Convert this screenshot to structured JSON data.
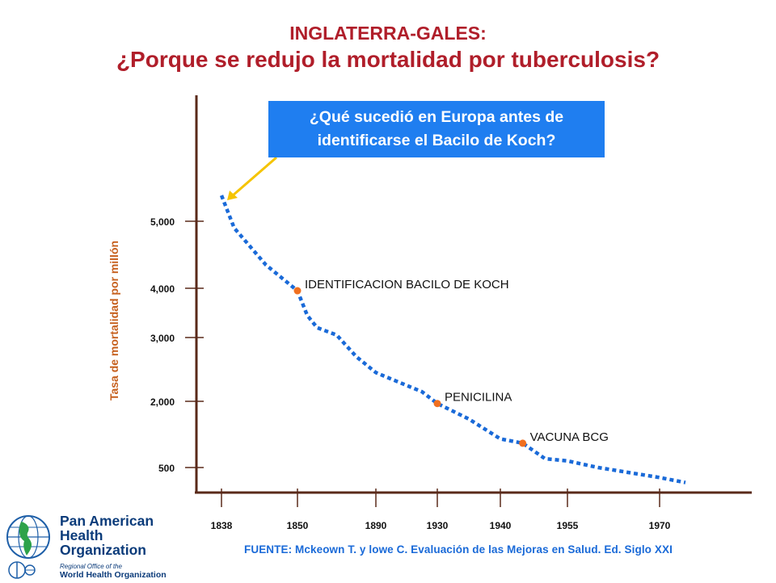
{
  "header": {
    "line1": "INGLATERRA-GALES:",
    "line2": "¿Porque se redujo la mortalidad por tuberculosis?"
  },
  "callout": {
    "line1": "¿Qué sucedió en Europa antes de",
    "line2": "identificarse el Bacilo de Koch?",
    "background": "#1f7ef0",
    "arrow_color": "#f5c400"
  },
  "source": "FUENTE: Mckeown T. y  lowe C. Evaluación de las Mejoras en Salud. Ed. Siglo XXI",
  "logo": {
    "org_line1": "Pan American",
    "org_line2": "Health",
    "org_line3": "Organization",
    "sub1": "Regional Office of the",
    "sub2": "World Health Organization",
    "icons": [
      "globe-americas-icon",
      "who-emblem-icon"
    ]
  },
  "chart_data": {
    "type": "line",
    "title": "",
    "xlabel": "",
    "ylabel": "Tasa de mortalidad por millón",
    "x_ticks": [
      "1838",
      "1850",
      "1890",
      "1930",
      "1940",
      "1955",
      "1970"
    ],
    "y_ticks": [
      "500",
      "2,000",
      "3,000",
      "4,000",
      "5,000"
    ],
    "grid": false,
    "line_color": "#1a6ad8",
    "line_style": "dotted",
    "marker_color": "#f07020",
    "series": [
      {
        "values": [
          {
            "x": 1838,
            "y": 5400
          },
          {
            "x": 1840,
            "y": 4900
          },
          {
            "x": 1845,
            "y": 4350
          },
          {
            "x": 1850,
            "y": 3950
          },
          {
            "x": 1855,
            "y": 3450
          },
          {
            "x": 1860,
            "y": 3200
          },
          {
            "x": 1870,
            "y": 3050
          },
          {
            "x": 1880,
            "y": 2700
          },
          {
            "x": 1890,
            "y": 2450
          },
          {
            "x": 1900,
            "y": 2350
          },
          {
            "x": 1910,
            "y": 2250
          },
          {
            "x": 1920,
            "y": 2150
          },
          {
            "x": 1930,
            "y": 1950
          },
          {
            "x": 1935,
            "y": 1600
          },
          {
            "x": 1940,
            "y": 1150
          },
          {
            "x": 1945,
            "y": 1050
          },
          {
            "x": 1950,
            "y": 700
          },
          {
            "x": 1955,
            "y": 650
          },
          {
            "x": 1960,
            "y": 500
          },
          {
            "x": 1970,
            "y": 300
          },
          {
            "x": 1975,
            "y": 200
          }
        ]
      }
    ],
    "annotations": [
      {
        "label": "IDENTIFICACION BACILO DE KOCH",
        "x": 1850,
        "y": 3950
      },
      {
        "label": "PENICILINA",
        "x": 1930,
        "y": 1950
      },
      {
        "label": "VACUNA BCG",
        "x": 1945,
        "y": 1050
      }
    ]
  }
}
